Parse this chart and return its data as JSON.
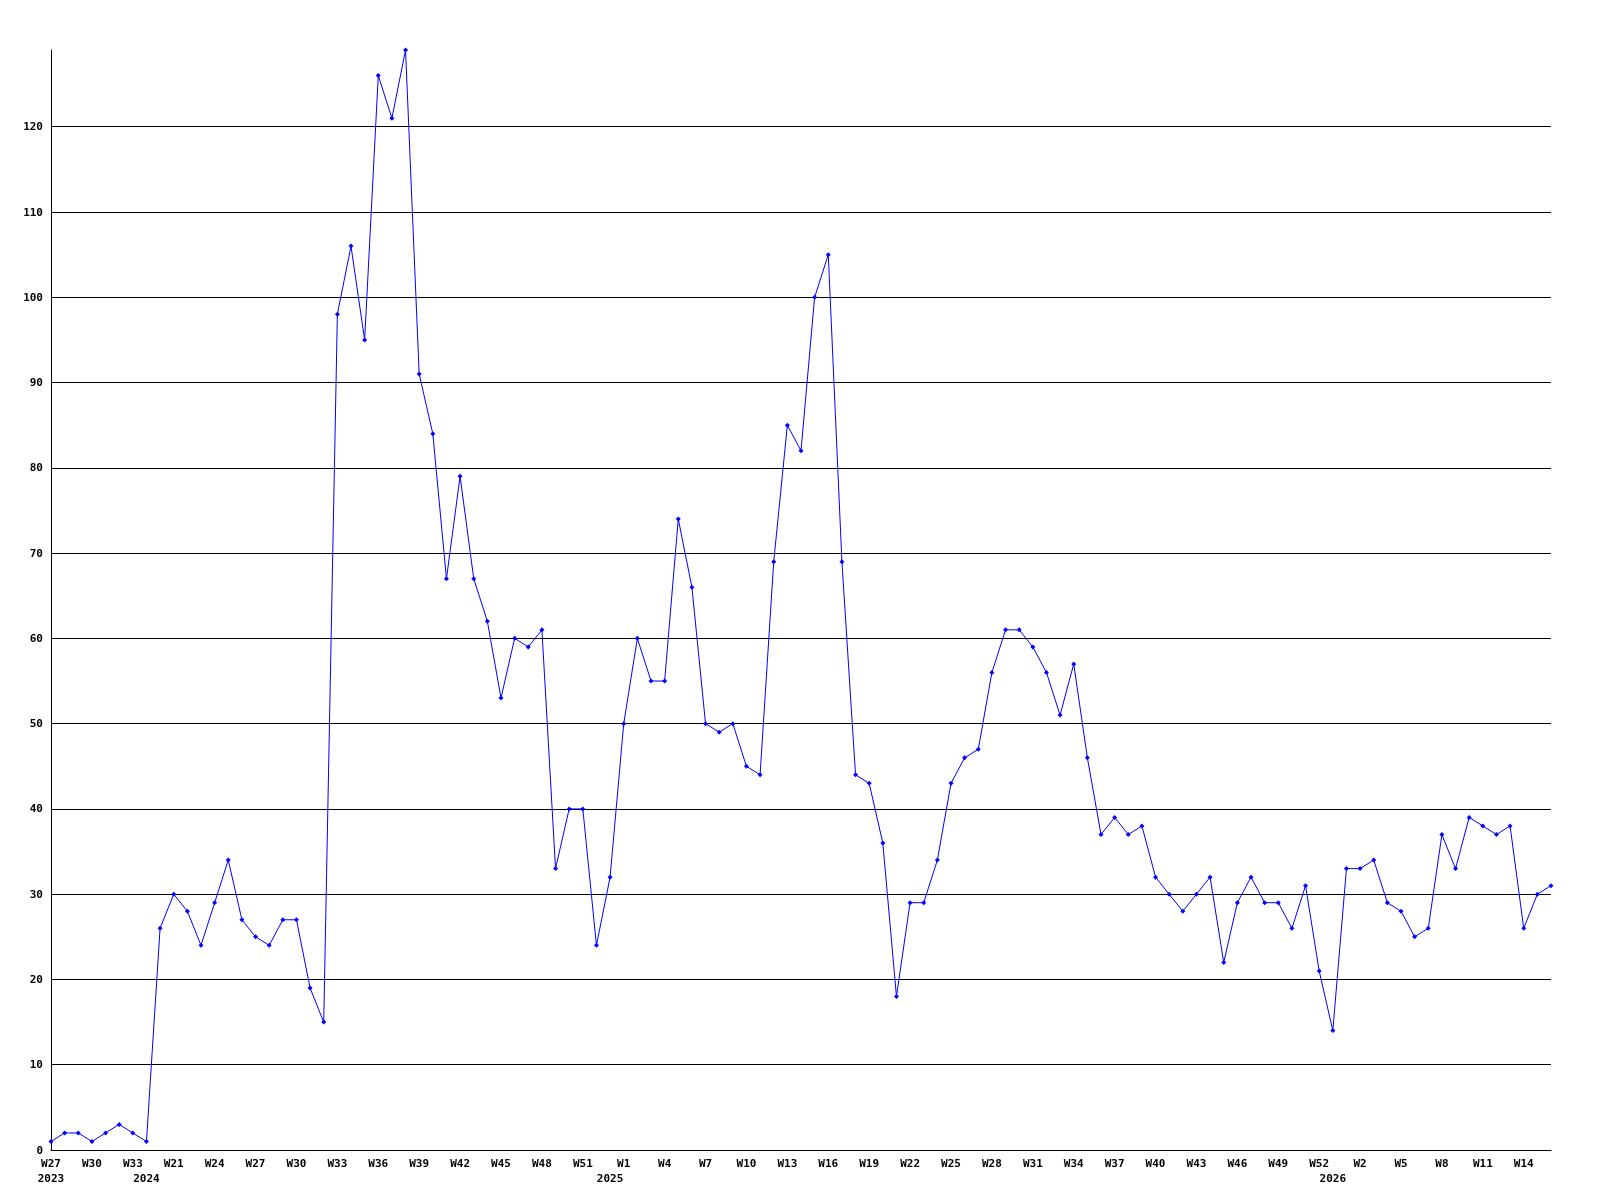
{
  "chart_data": {
    "type": "line",
    "categories": [
      "W27\n2023",
      null,
      null,
      "W30",
      null,
      null,
      "W33",
      "\n2024",
      null,
      "W21",
      null,
      null,
      "W24",
      null,
      null,
      "W27",
      null,
      null,
      "W30",
      null,
      null,
      "W33",
      null,
      null,
      "W36",
      null,
      null,
      "W39",
      null,
      null,
      "W42",
      null,
      null,
      "W45",
      null,
      null,
      "W48",
      null,
      null,
      "W51",
      null,
      "\n2025",
      "W1",
      null,
      null,
      "W4",
      null,
      null,
      "W7",
      null,
      null,
      "W10",
      null,
      null,
      "W13",
      null,
      null,
      "W16",
      null,
      null,
      "W19",
      null,
      null,
      "W22",
      null,
      null,
      "W25",
      null,
      null,
      "W28",
      null,
      null,
      "W31",
      null,
      null,
      "W34",
      null,
      null,
      "W37",
      null,
      null,
      "W40",
      null,
      null,
      "W43",
      null,
      null,
      "W46",
      null,
      null,
      "W49",
      null,
      null,
      "W52",
      "\n2026",
      null,
      "W2",
      null,
      null,
      "W5",
      null,
      null,
      "W8",
      null,
      null,
      "W11",
      null,
      null,
      "W14",
      null,
      null
    ],
    "series": [
      {
        "color": "#0000ff",
        "values": [
          1,
          2,
          2,
          1,
          2,
          3,
          2,
          1,
          26,
          30,
          28,
          24,
          29,
          34,
          27,
          25,
          24,
          27,
          27,
          19,
          15,
          98,
          106,
          95,
          126,
          121,
          129,
          91,
          84,
          67,
          79,
          67,
          62,
          53,
          60,
          59,
          61,
          33,
          40,
          40,
          24,
          32,
          50,
          60,
          55,
          55,
          74,
          66,
          50,
          49,
          50,
          45,
          44,
          69,
          85,
          82,
          100,
          105,
          69,
          44,
          43,
          36,
          18,
          29,
          29,
          34,
          43,
          46,
          47,
          56,
          61,
          61,
          59,
          56,
          51,
          57,
          46,
          37,
          39,
          37,
          38,
          32,
          30,
          28,
          30,
          32,
          22,
          29,
          32,
          29,
          29,
          26,
          31,
          21,
          14,
          33,
          33,
          34,
          29,
          28,
          25,
          26,
          37,
          33,
          39,
          38,
          37,
          38,
          26,
          30,
          31
        ]
      }
    ],
    "ylim": [
      0,
      129
    ],
    "yticks": [
      0,
      10,
      20,
      30,
      40,
      50,
      60,
      70,
      80,
      90,
      100,
      110,
      120
    ],
    "grid": "y",
    "marker": "diamond",
    "line_style": "solid"
  }
}
